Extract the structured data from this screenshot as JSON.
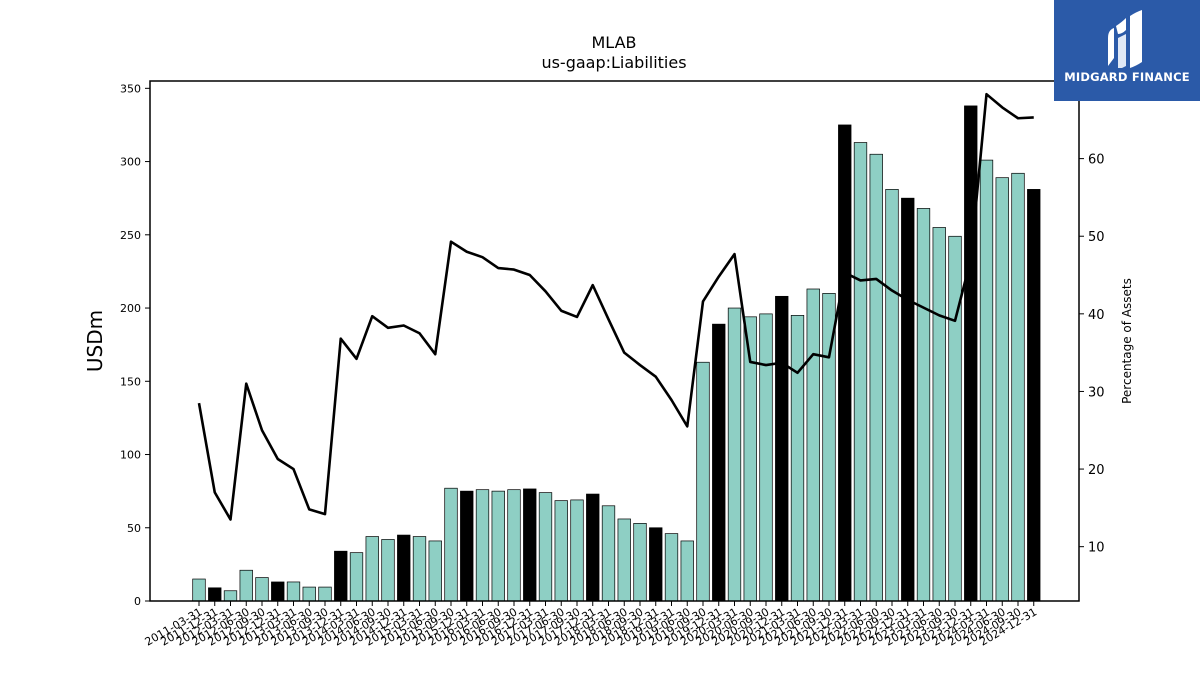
{
  "logo": {
    "text": "MIDGARD FINANCE"
  },
  "chart_data": {
    "type": "bar",
    "title": "MLAB",
    "subtitle": "us-gaap:Liabilities",
    "ylabel": "USDm",
    "y2label": "Percentage of Assets",
    "ylim": [
      0,
      355
    ],
    "y2lim": [
      3,
      70
    ],
    "yticks": [
      0,
      50,
      100,
      150,
      200,
      250,
      300,
      350
    ],
    "y2ticks": [
      10,
      20,
      30,
      40,
      50,
      60
    ],
    "colors": {
      "bar": "#8ecfc4",
      "bar_highlight": "#000000",
      "line": "#000000"
    },
    "categories": [
      "2011-03-31",
      "2011-12-31",
      "2012-03-31",
      "2012-06-30",
      "2012-09-30",
      "2012-12-31",
      "2013-03-31",
      "2013-06-30",
      "2013-09-30",
      "2013-12-31",
      "2014-03-31",
      "2014-06-30",
      "2014-09-30",
      "2014-12-31",
      "2015-03-31",
      "2015-06-30",
      "2015-09-30",
      "2015-12-31",
      "2016-03-31",
      "2016-06-30",
      "2016-09-30",
      "2016-12-31",
      "2017-03-31",
      "2017-06-30",
      "2017-09-30",
      "2017-12-31",
      "2018-03-31",
      "2018-06-30",
      "2018-09-30",
      "2018-12-31",
      "2019-03-31",
      "2019-06-30",
      "2019-09-30",
      "2019-12-31",
      "2020-03-31",
      "2020-06-30",
      "2020-09-30",
      "2020-12-31",
      "2021-03-31",
      "2021-06-30",
      "2021-09-30",
      "2021-12-31",
      "2022-03-31",
      "2022-06-30",
      "2022-09-30",
      "2022-12-31",
      "2023-03-31",
      "2023-06-30",
      "2023-09-30",
      "2023-12-31",
      "2024-03-31",
      "2024-06-30",
      "2024-09-30",
      "2024-12-31"
    ],
    "series": [
      {
        "type": "bar",
        "values": [
          15,
          9,
          7,
          21,
          16,
          13,
          13,
          9.5,
          9.5,
          34,
          33,
          44,
          42,
          45,
          44,
          41,
          77,
          75,
          76,
          75,
          76,
          76.5,
          74,
          68.5,
          69,
          73,
          65,
          56,
          53,
          50,
          46,
          41,
          163,
          189,
          200,
          194,
          196,
          208,
          195,
          213,
          210,
          325,
          313,
          305,
          281,
          275,
          268,
          255,
          249,
          338,
          301,
          289,
          292,
          281
        ]
      },
      {
        "type": "line",
        "values": [
          28.5,
          17,
          13.5,
          31,
          25,
          21.3,
          20,
          14.8,
          14.2,
          36.8,
          34.2,
          39.7,
          38.2,
          38.5,
          37.5,
          34.8,
          49.3,
          48,
          47.3,
          45.9,
          45.7,
          45,
          42.9,
          40.4,
          39.6,
          43.7,
          39.3,
          35,
          33.4,
          31.9,
          28.9,
          25.5,
          41.6,
          44.8,
          47.7,
          33.8,
          33.4,
          33.7,
          32.4,
          34.8,
          34.4,
          45.3,
          44.3,
          44.5,
          43,
          41.8,
          40.8,
          39.8,
          39.1,
          47,
          68.3,
          66.6,
          65.2,
          65.3
        ]
      }
    ],
    "highlight_indices": [
      1,
      5,
      9,
      13,
      17,
      21,
      25,
      29,
      33,
      37,
      41,
      45,
      49,
      53
    ],
    "grid": false,
    "legend": "none"
  }
}
